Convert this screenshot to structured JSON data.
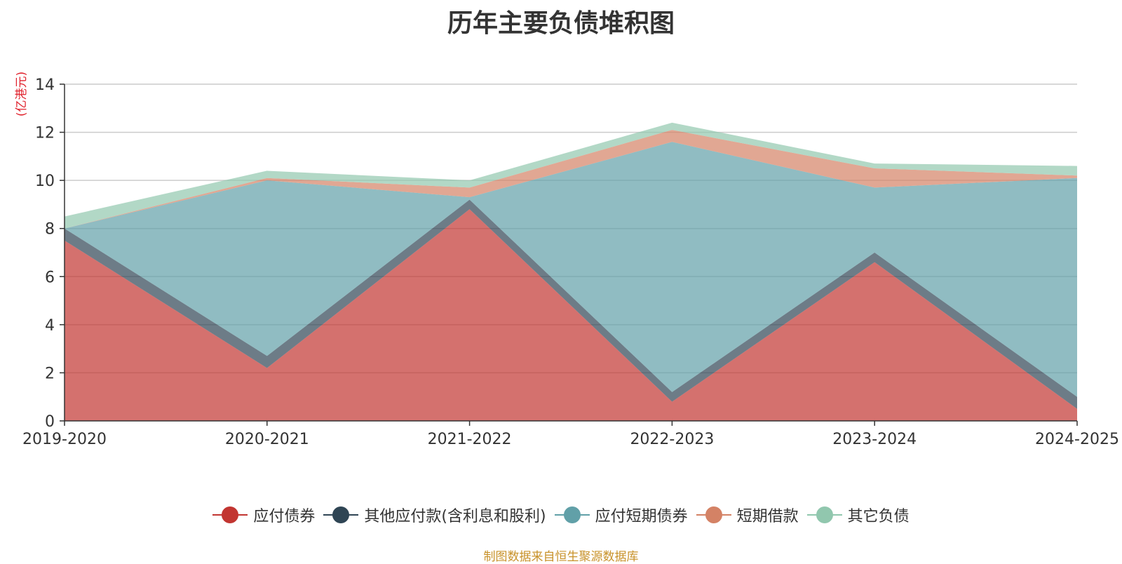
{
  "chart_data": {
    "type": "area",
    "stacked": true,
    "title": "历年主要负债堆积图",
    "ylabel": "(亿港元)",
    "xlabel": "",
    "ylim": [
      0,
      14
    ],
    "yticks": [
      0,
      2,
      4,
      6,
      8,
      10,
      12,
      14
    ],
    "grid": true,
    "legend_position": "bottom",
    "categories": [
      "2019-2020",
      "2020-2021",
      "2021-2022",
      "2022-2023",
      "2023-2024",
      "2024-2025"
    ],
    "series": [
      {
        "name": "应付债券",
        "color": "#c23531",
        "values": [
          7.5,
          2.2,
          8.8,
          0.8,
          6.6,
          0.5
        ]
      },
      {
        "name": "其他应付款(含利息和股利)",
        "color": "#2f4554",
        "values": [
          0.5,
          0.5,
          0.4,
          0.4,
          0.4,
          0.5
        ]
      },
      {
        "name": "应付短期债券",
        "color": "#61a0a8",
        "values": [
          0.0,
          7.3,
          0.1,
          10.4,
          2.7,
          9.1
        ]
      },
      {
        "name": "短期借款",
        "color": "#d48265",
        "values": [
          0.0,
          0.1,
          0.4,
          0.5,
          0.8,
          0.1
        ]
      },
      {
        "name": "其它负债",
        "color": "#91c7ae",
        "values": [
          0.5,
          0.3,
          0.3,
          0.3,
          0.2,
          0.4
        ]
      }
    ],
    "source_note": "制图数据来自恒生聚源数据库"
  }
}
